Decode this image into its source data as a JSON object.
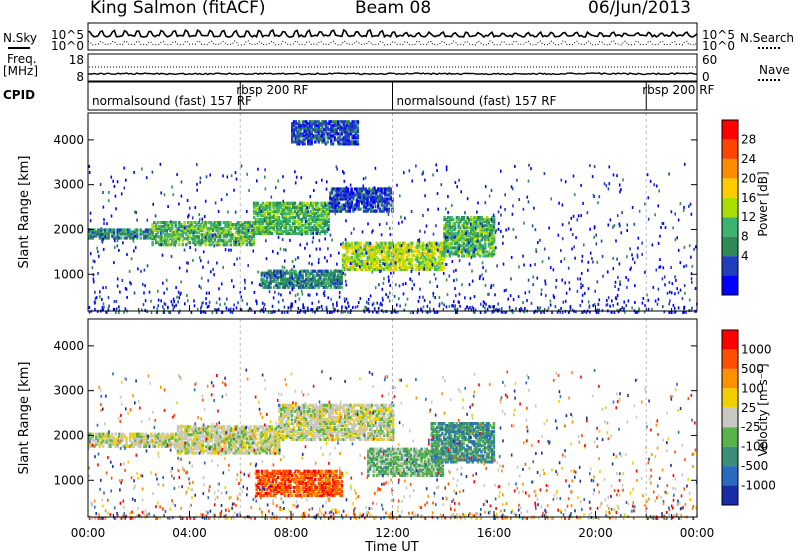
{
  "header": {
    "station": "King Salmon (fitACF)",
    "beam": "Beam 08",
    "date": "06/Jun/2013"
  },
  "top_panels": {
    "nsky_label": "N.Sky",
    "nsearch_label": "N.Search",
    "freq_label_1": "Freq.",
    "freq_label_2": "[MHz]",
    "nave_label": "Nave",
    "cpid_label": "CPID",
    "noise_left_ticks": [
      "10^5",
      "10^0"
    ],
    "noise_right_ticks": [
      "10^5",
      "10^0"
    ],
    "freq_left_ticks": [
      "18",
      "8"
    ],
    "freq_right_ticks": [
      "60",
      "0"
    ],
    "cpid_segments": [
      {
        "label": "normalsound (fast) 157 RF",
        "start": 0,
        "end": 6
      },
      {
        "label": "rbsp 200 RF",
        "start": 6,
        "end": 12
      },
      {
        "label": "normalsound (fast) 157 RF",
        "start": 12,
        "end": 22
      },
      {
        "label": "rbsp 200 RF",
        "start": 22,
        "end": 24
      }
    ]
  },
  "colors": {
    "power": [
      "#0000ff",
      "#1f3fbf",
      "#2e8b57",
      "#3cb371",
      "#aadd00",
      "#ffcc00",
      "#ff8c00",
      "#ff4500",
      "#ff0000"
    ],
    "velocity": [
      "#1a2ca8",
      "#2a6abf",
      "#3b8f7a",
      "#5ab34a",
      "#c8c8c0",
      "#f0d000",
      "#ff9000",
      "#ff5000",
      "#ff0000"
    ]
  },
  "chart_data": [
    {
      "type": "heatmap",
      "panel": "power",
      "xlabel": "",
      "ylabel": "Slant Range [km]",
      "xlim": [
        0,
        24
      ],
      "ylim": [
        180,
        4600
      ],
      "yticks": [
        "1000",
        "2000",
        "3000",
        "4000"
      ],
      "colorbar": {
        "label": "Power [dB]",
        "ticks": [
          "28",
          "24",
          "20",
          "16",
          "12",
          "8",
          "4"
        ]
      },
      "features": [
        {
          "from_hour": 0.0,
          "to_hour": 2.5,
          "range_min_km": 1800,
          "range_max_km": 2000,
          "level": 2
        },
        {
          "from_hour": 2.5,
          "to_hour": 6.5,
          "range_min_km": 1650,
          "range_max_km": 2150,
          "level": 3
        },
        {
          "from_hour": 6.5,
          "to_hour": 9.5,
          "range_min_km": 1900,
          "range_max_km": 2600,
          "level": 3
        },
        {
          "from_hour": 9.5,
          "to_hour": 12.0,
          "range_min_km": 2400,
          "range_max_km": 2900,
          "level": 1
        },
        {
          "from_hour": 6.8,
          "to_hour": 10.0,
          "range_min_km": 700,
          "range_max_km": 1100,
          "level": 2
        },
        {
          "from_hour": 10.0,
          "to_hour": 14.0,
          "range_min_km": 1100,
          "range_max_km": 1700,
          "level": 4
        },
        {
          "from_hour": 14.0,
          "to_hour": 16.0,
          "range_min_km": 1400,
          "range_max_km": 2300,
          "level": 3
        },
        {
          "from_hour": 8.0,
          "to_hour": 10.6,
          "range_min_km": 3900,
          "range_max_km": 4400,
          "level": 1
        }
      ]
    },
    {
      "type": "heatmap",
      "panel": "velocity",
      "xlabel": "Time UT",
      "ylabel": "Slant Range [km]",
      "xlim": [
        0,
        24
      ],
      "ylim": [
        180,
        4600
      ],
      "xticks": [
        "00:00",
        "04:00",
        "08:00",
        "12:00",
        "16:00",
        "20:00",
        "00:00"
      ],
      "yticks": [
        "1000",
        "2000",
        "3000",
        "4000"
      ],
      "colorbar": {
        "label": "Velocity [m s⁻¹]",
        "ticks": [
          "1000",
          "500",
          "100",
          "25",
          "-25",
          "-100",
          "-500",
          "-1000"
        ]
      },
      "features": [
        {
          "from_hour": 0.0,
          "to_hour": 3.5,
          "range_min_km": 1750,
          "range_max_km": 2050,
          "level": 4
        },
        {
          "from_hour": 3.5,
          "to_hour": 7.5,
          "range_min_km": 1600,
          "range_max_km": 2200,
          "level": 4
        },
        {
          "from_hour": 7.5,
          "to_hour": 12.0,
          "range_min_km": 1900,
          "range_max_km": 2700,
          "level": 4
        },
        {
          "from_hour": 6.6,
          "to_hour": 10.0,
          "range_min_km": 650,
          "range_max_km": 1200,
          "level": 7
        },
        {
          "from_hour": 11.0,
          "to_hour": 14.0,
          "range_min_km": 1100,
          "range_max_km": 1700,
          "level": 3
        },
        {
          "from_hour": 13.5,
          "to_hour": 16.0,
          "range_min_km": 1400,
          "range_max_km": 2300,
          "level": 2
        }
      ]
    }
  ]
}
